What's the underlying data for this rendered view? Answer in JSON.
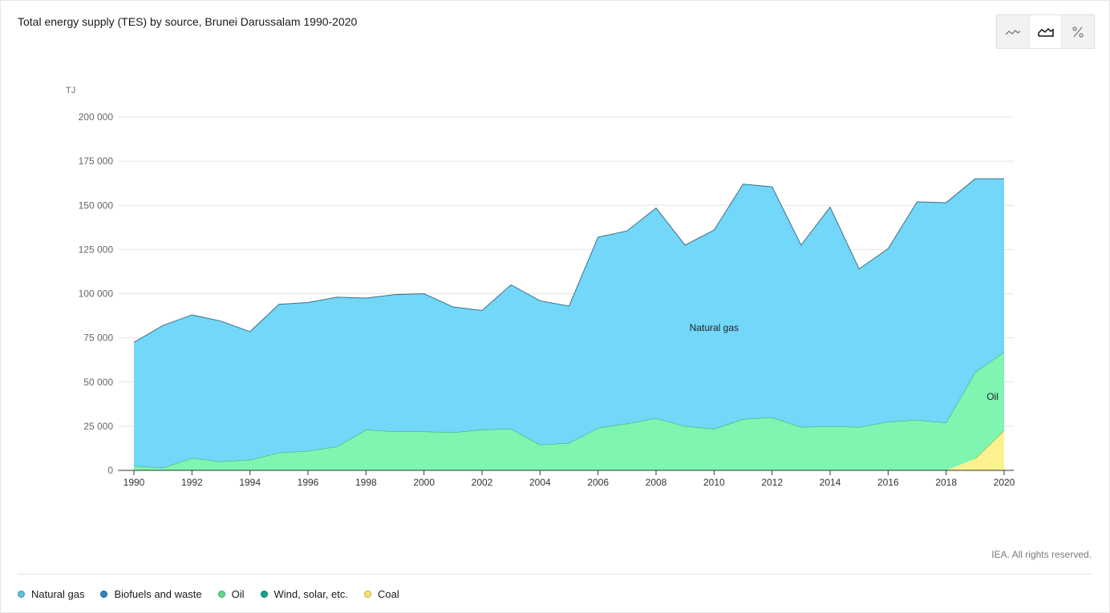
{
  "title": "Total energy supply (TES) by source, Brunei Darussalam 1990-2020",
  "toggle": {
    "buttons": [
      {
        "name": "line-chart-icon",
        "active": false
      },
      {
        "name": "area-chart-icon",
        "active": true
      },
      {
        "name": "percent-icon",
        "active": false
      }
    ]
  },
  "credit": "IEA. All rights reserved.",
  "legend": [
    {
      "label": "Natural gas",
      "color": "#5bc0de"
    },
    {
      "label": "Biofuels and waste",
      "color": "#2e86c1"
    },
    {
      "label": "Oil",
      "color": "#5fd98a"
    },
    {
      "label": "Wind, solar, etc.",
      "color": "#17a589"
    },
    {
      "label": "Coal",
      "color": "#f7e36b"
    }
  ],
  "chart_data": {
    "type": "area",
    "stacked": true,
    "title": "Total energy supply (TES) by source, Brunei Darussalam 1990-2020",
    "ylabel": "TJ",
    "ylim": [
      0,
      200000
    ],
    "yticks": [
      0,
      25000,
      50000,
      75000,
      100000,
      125000,
      150000,
      175000,
      200000
    ],
    "ytick_labels": [
      "0",
      "25 000",
      "50 000",
      "75 000",
      "100 000",
      "125 000",
      "150 000",
      "175 000",
      "200 000"
    ],
    "xlim": [
      1990,
      2020
    ],
    "xticks": [
      1990,
      1992,
      1994,
      1996,
      1998,
      2000,
      2002,
      2004,
      2006,
      2008,
      2010,
      2012,
      2014,
      2016,
      2018,
      2020
    ],
    "grid": true,
    "x": [
      1990,
      1991,
      1992,
      1993,
      1994,
      1995,
      1996,
      1997,
      1998,
      1999,
      2000,
      2001,
      2002,
      2003,
      2004,
      2005,
      2006,
      2007,
      2008,
      2009,
      2010,
      2011,
      2012,
      2013,
      2014,
      2015,
      2016,
      2017,
      2018,
      2019,
      2020
    ],
    "series": [
      {
        "name": "Coal",
        "color": "#fbf18f",
        "stroke": "#a6a23b",
        "values": [
          0,
          0,
          0,
          0,
          0,
          0,
          0,
          0,
          0,
          0,
          0,
          0,
          0,
          0,
          0,
          0,
          0,
          0,
          0,
          0,
          0,
          0,
          0,
          0,
          0,
          0,
          0,
          0,
          0,
          6500,
          22500
        ]
      },
      {
        "name": "Oil",
        "color": "#7ef5b0",
        "stroke": "#4a9a6c",
        "label": "Oil",
        "values": [
          2500,
          1500,
          7000,
          5000,
          6000,
          10000,
          11000,
          13500,
          23000,
          22000,
          22000,
          21500,
          23000,
          23500,
          14500,
          15500,
          24000,
          26500,
          29500,
          25000,
          23500,
          29000,
          30000,
          24500,
          25000,
          24500,
          27500,
          28500,
          27000,
          49000,
          44500
        ]
      },
      {
        "name": "Natural gas",
        "color": "#72d7f9",
        "stroke": "#3f6f84",
        "label": "Natural gas",
        "values": [
          70000,
          80500,
          81000,
          79500,
          72500,
          84000,
          84000,
          84500,
          74500,
          77500,
          78000,
          71000,
          67500,
          81500,
          81500,
          77500,
          108000,
          109000,
          119000,
          102500,
          112500,
          133000,
          130500,
          103000,
          124000,
          89500,
          98000,
          123500,
          124500,
          109500,
          98000
        ]
      }
    ],
    "series_labels": [
      {
        "text": "Natural gas",
        "x": 2010,
        "y": 79000
      },
      {
        "text": "Oil",
        "x": 2019.6,
        "y": 40000
      }
    ]
  }
}
